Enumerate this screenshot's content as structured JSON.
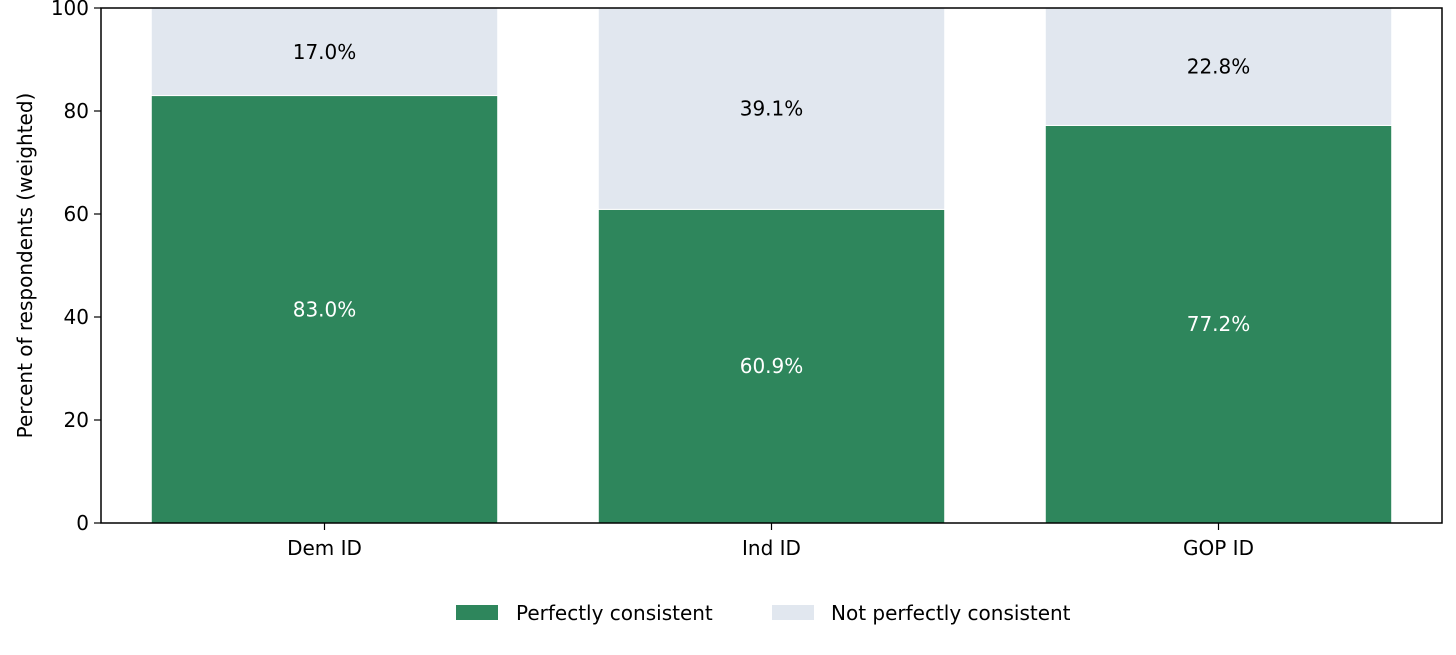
{
  "chart_data": {
    "type": "bar",
    "stacked": true,
    "title": "",
    "xlabel": "",
    "ylabel": "Percent of respondents (weighted)",
    "ylim": [
      0,
      100
    ],
    "yticks": [
      0,
      20,
      40,
      60,
      80,
      100
    ],
    "grid": false,
    "legend_position": "bottom-center",
    "categories": [
      "Dem ID",
      "Ind ID",
      "GOP ID"
    ],
    "series": [
      {
        "name": "Perfectly consistent",
        "color": "#2e865c",
        "label_color": "#ffffff",
        "values": [
          83.0,
          60.9,
          77.2
        ],
        "labels": [
          "83.0%",
          "60.9%",
          "77.2%"
        ]
      },
      {
        "name": "Not perfectly consistent",
        "color": "#e1e7ef",
        "label_color": "#000000",
        "values": [
          17.0,
          39.1,
          22.8
        ],
        "labels": [
          "17.0%",
          "39.1%",
          "22.8%"
        ]
      }
    ]
  }
}
